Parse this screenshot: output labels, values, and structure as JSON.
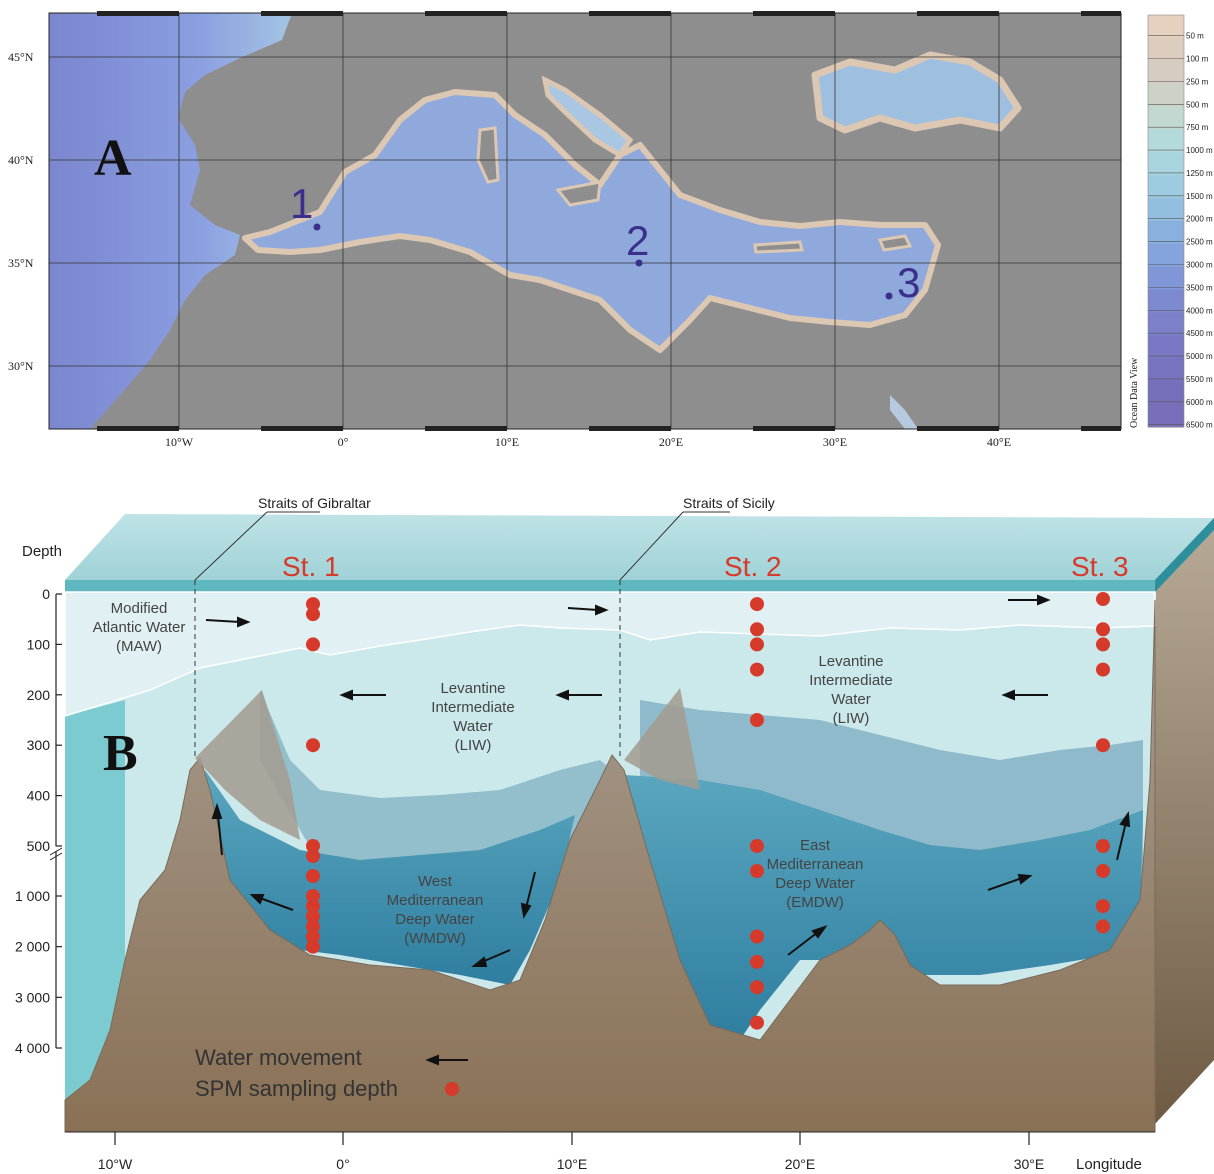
{
  "panel_a": {
    "label": "A",
    "lat_labels": [
      "45°N",
      "40°N",
      "35°N",
      "30°N"
    ],
    "lon_labels": [
      "10°W",
      "0°",
      "10°E",
      "20°E",
      "30°E",
      "40°E"
    ],
    "stations": [
      {
        "label": "1"
      },
      {
        "label": "2"
      },
      {
        "label": "3"
      }
    ],
    "colorbar": {
      "title": "Ocean Data View",
      "levels": [
        "50 m",
        "100 m",
        "250 m",
        "500 m",
        "750 m",
        "1000 m",
        "1250 m",
        "1500 m",
        "2000 m",
        "2500 m",
        "3000 m",
        "3500 m",
        "4000 m",
        "4500 m",
        "5000 m",
        "5500 m",
        "6000 m",
        "6500 m"
      ],
      "colors": [
        "#e6d1bf",
        "#dccdbe",
        "#d5cdc1",
        "#cdd2c8",
        "#c2d8d1",
        "#b5dadb",
        "#a8d4df",
        "#9dcbe0",
        "#93bee0",
        "#8ab1de",
        "#85a3dc",
        "#8096d6",
        "#7d8ad0",
        "#7b80c9",
        "#7978c4",
        "#7773bf",
        "#7670bb",
        "#776fb9"
      ]
    }
  },
  "panel_b": {
    "label": "B",
    "depth_title": "Depth",
    "depth_ticks": [
      "0",
      "100",
      "200",
      "300",
      "400",
      "500",
      "1 000",
      "2 000",
      "3 000",
      "4 000"
    ],
    "lon_ticks": [
      "10°W",
      "0°",
      "10°E",
      "20°E",
      "30°E"
    ],
    "lon_axis_label": "Longitude",
    "straits": [
      "Straits of Gibraltar",
      "Straits of Sicily"
    ],
    "stations": [
      "St. 1",
      "St. 2",
      "St. 3"
    ],
    "water_masses": {
      "maw": [
        "Modified",
        "Atlantic Water",
        "(MAW)"
      ],
      "liw_west": [
        "Levantine",
        "Intermediate",
        "Water",
        "(LIW)"
      ],
      "liw_east": [
        "Levantine",
        "Intermediate",
        "Water",
        "(LIW)"
      ],
      "wmdw": [
        "West",
        "Mediterranean",
        "Deep Water",
        "(WMDW)"
      ],
      "emdw": [
        "East",
        "Mediterranean",
        "Deep Water",
        "(EMDW)"
      ]
    },
    "legend": {
      "water_movement": "Water movement",
      "spm_sampling": "SPM sampling depth"
    },
    "sampling_depths_m": {
      "st1": [
        20,
        40,
        100,
        300,
        500,
        600,
        800,
        1000,
        1200,
        1400,
        1600,
        1800,
        2000
      ],
      "st2": [
        20,
        70,
        100,
        150,
        250,
        500,
        750,
        1800,
        2300,
        2800,
        3500
      ],
      "st3": [
        10,
        70,
        100,
        150,
        300,
        500,
        750,
        1200,
        1600
      ]
    }
  }
}
